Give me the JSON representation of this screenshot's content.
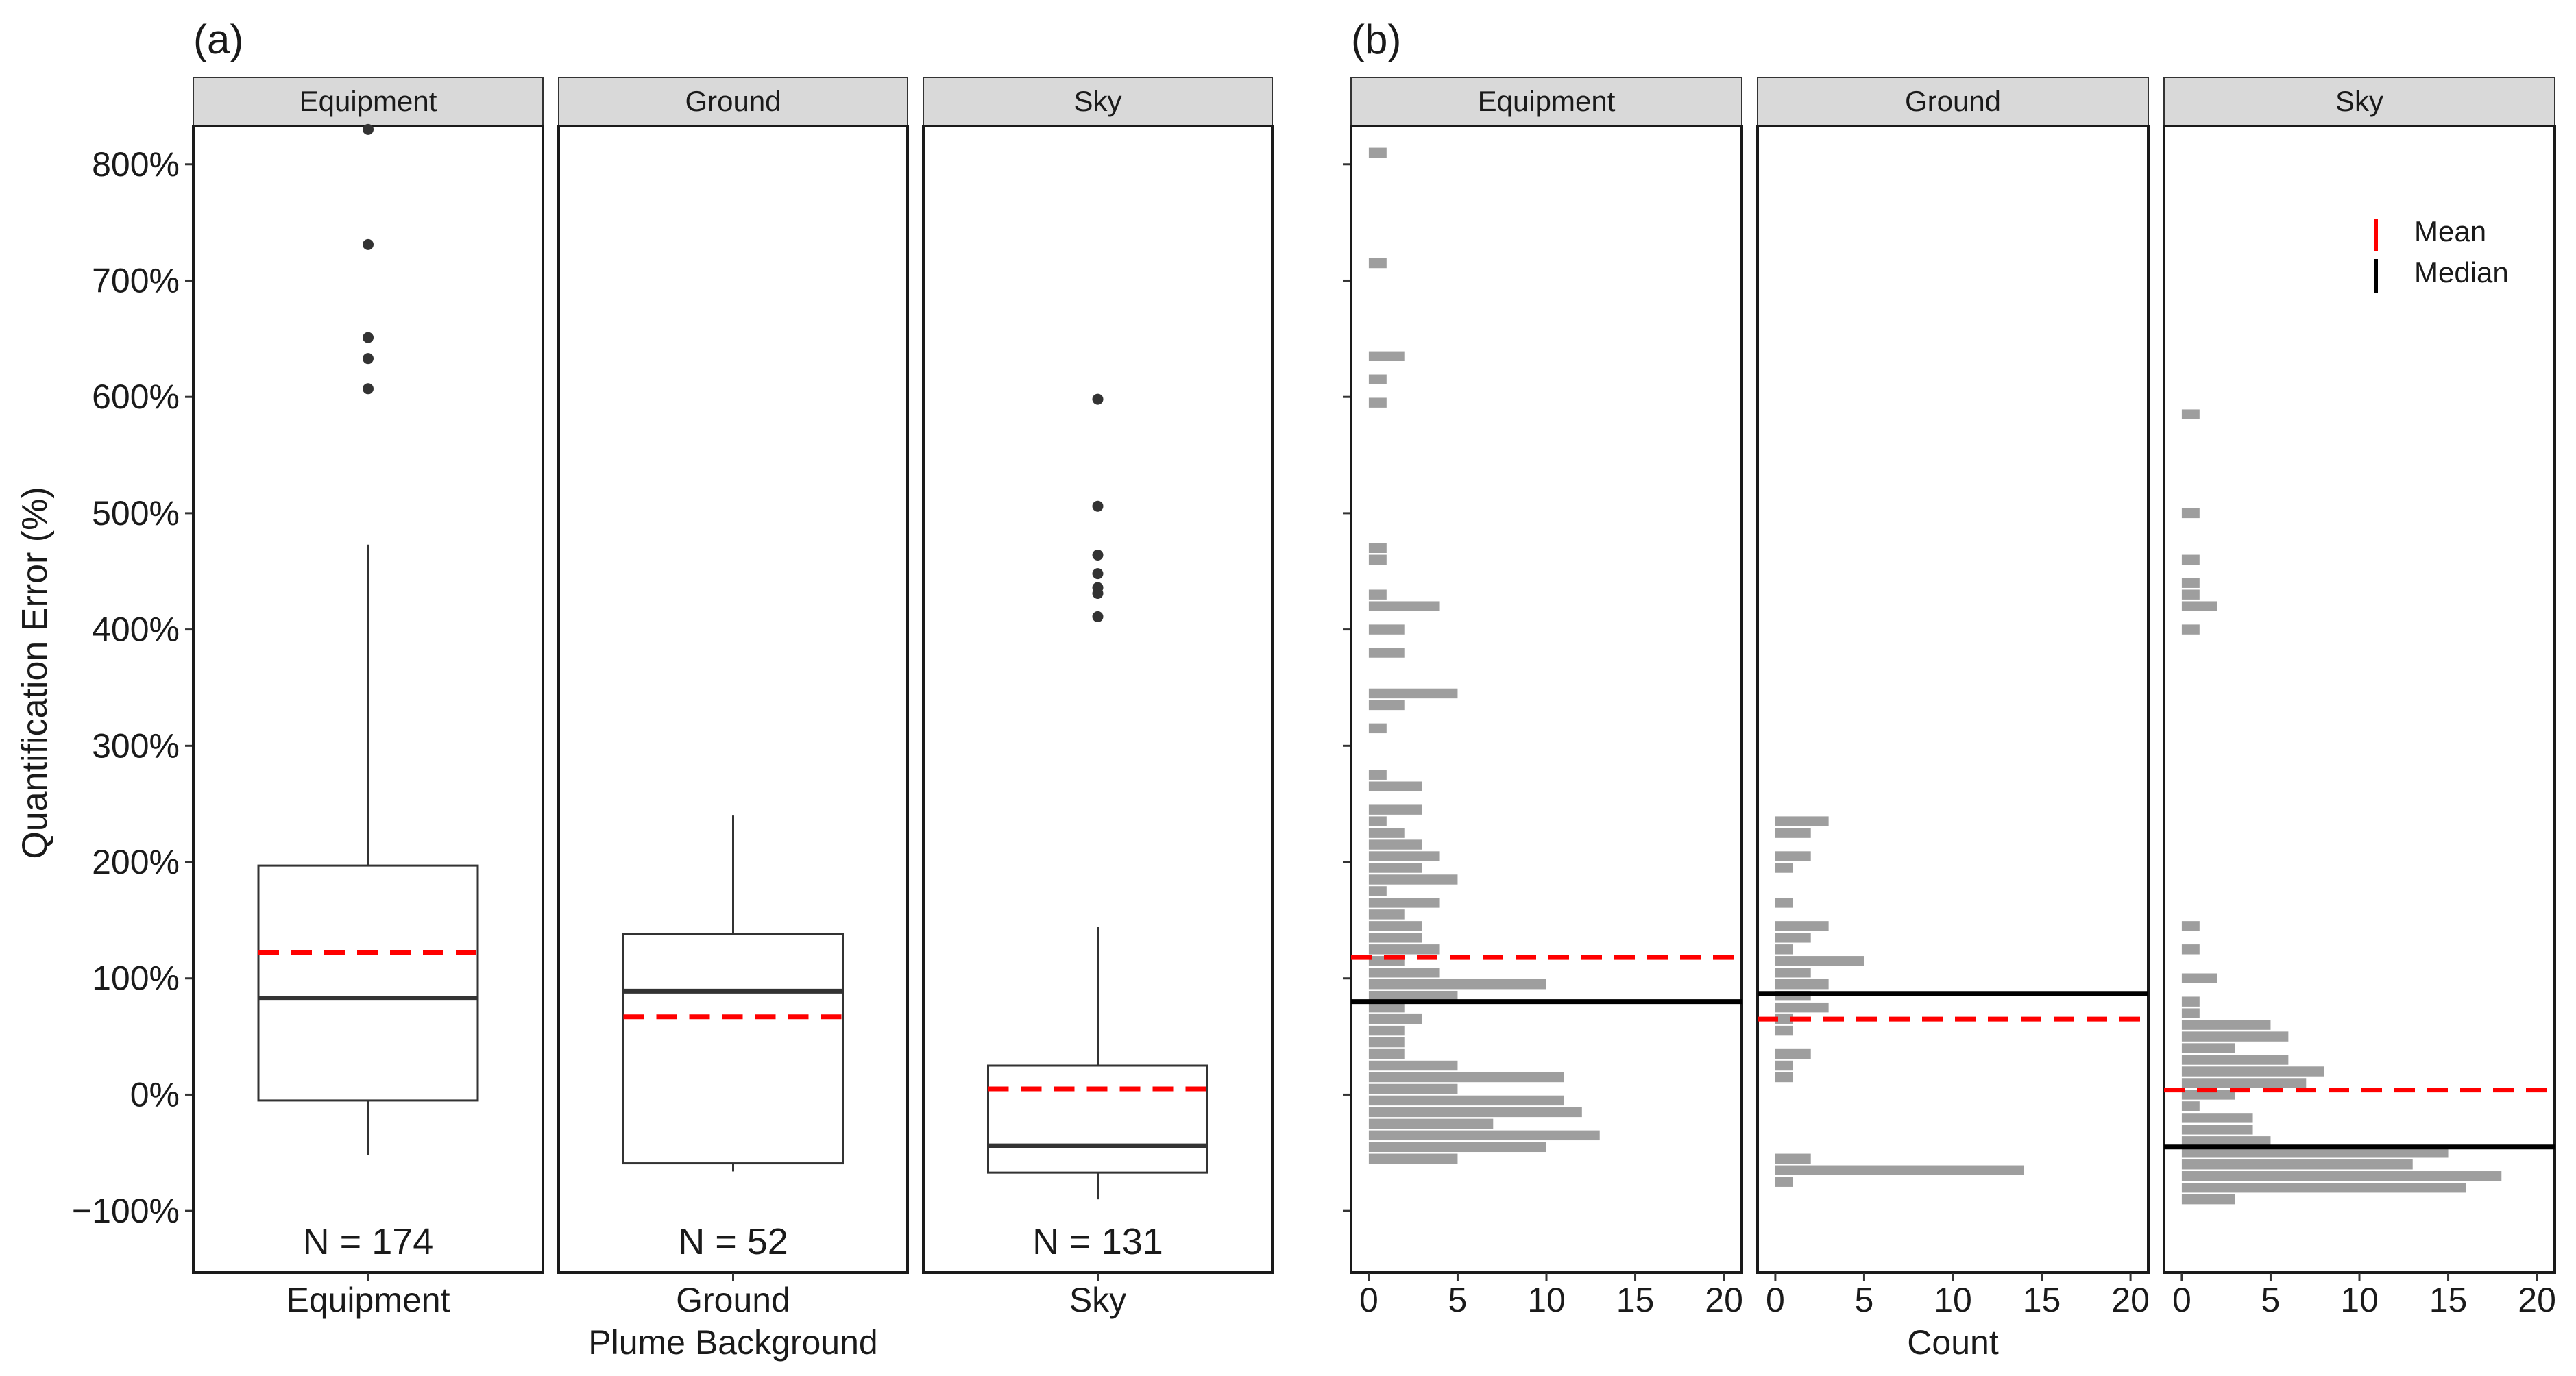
{
  "colors": {
    "mean_line": "#ff0000",
    "median_line": "#000000",
    "histogram_bar": "#9e9e9e",
    "box_median": "#333333",
    "strip_fill": "#d9d9d9",
    "outlier_point": "#333333"
  },
  "chart_data": [
    {
      "type": "box",
      "panel_label": "(a)",
      "ylabel": "Quantification Error (%)",
      "xlabel": "Plume Background",
      "ylim": [
        -150,
        880
      ],
      "ytick_values": [
        -100,
        0,
        100,
        200,
        300,
        400,
        500,
        600,
        700,
        800
      ],
      "ytick_labels": [
        "−100%",
        "0%",
        "100%",
        "200%",
        "300%",
        "400%",
        "500%",
        "600%",
        "700%",
        "800%"
      ],
      "facets": [
        {
          "strip": "Equipment",
          "category": "Equipment",
          "n_label": "N = 174",
          "lower_whisker": -52,
          "q1": -5,
          "median": 83,
          "mean": 122,
          "q3": 197,
          "upper_whisker": 473,
          "outliers": [
            607,
            633,
            651,
            731,
            830
          ]
        },
        {
          "strip": "Ground",
          "category": "Ground",
          "n_label": "N = 52",
          "lower_whisker": -66,
          "q1": -59,
          "median": 89,
          "mean": 67,
          "q3": 138,
          "upper_whisker": 240,
          "outliers": []
        },
        {
          "strip": "Sky",
          "category": "Sky",
          "n_label": "N = 131",
          "lower_whisker": -90,
          "q1": -67,
          "median": -44,
          "mean": 5,
          "q3": 25,
          "upper_whisker": 144,
          "outliers": [
            411,
            431,
            436,
            448,
            464,
            506,
            598
          ]
        }
      ]
    },
    {
      "type": "histogram",
      "orientation": "horizontal",
      "panel_label": "(b)",
      "xlabel": "Count",
      "xlim": [
        -1,
        21
      ],
      "xtick_values": [
        0,
        5,
        10,
        15,
        20
      ],
      "xtick_labels": [
        "0",
        "5",
        "10",
        "15",
        "20"
      ],
      "ylim": [
        -150,
        880
      ],
      "bin_width": 10,
      "legend": {
        "position": "top-right",
        "entries": [
          "Mean",
          "Median"
        ]
      },
      "facets": [
        {
          "strip": "Equipment",
          "mean": 118,
          "median": 80,
          "bins": [
            {
              "y": 810,
              "count": 1
            },
            {
              "y": 715,
              "count": 1
            },
            {
              "y": 635,
              "count": 2
            },
            {
              "y": 615,
              "count": 1
            },
            {
              "y": 595,
              "count": 1
            },
            {
              "y": 470,
              "count": 1
            },
            {
              "y": 460,
              "count": 1
            },
            {
              "y": 430,
              "count": 1
            },
            {
              "y": 420,
              "count": 4
            },
            {
              "y": 400,
              "count": 2
            },
            {
              "y": 380,
              "count": 2
            },
            {
              "y": 345,
              "count": 5
            },
            {
              "y": 335,
              "count": 2
            },
            {
              "y": 315,
              "count": 1
            },
            {
              "y": 275,
              "count": 1
            },
            {
              "y": 265,
              "count": 3
            },
            {
              "y": 245,
              "count": 3
            },
            {
              "y": 235,
              "count": 1
            },
            {
              "y": 225,
              "count": 2
            },
            {
              "y": 215,
              "count": 3
            },
            {
              "y": 205,
              "count": 4
            },
            {
              "y": 195,
              "count": 3
            },
            {
              "y": 185,
              "count": 5
            },
            {
              "y": 175,
              "count": 1
            },
            {
              "y": 165,
              "count": 4
            },
            {
              "y": 155,
              "count": 2
            },
            {
              "y": 145,
              "count": 3
            },
            {
              "y": 135,
              "count": 3
            },
            {
              "y": 125,
              "count": 4
            },
            {
              "y": 115,
              "count": 2
            },
            {
              "y": 105,
              "count": 4
            },
            {
              "y": 95,
              "count": 10
            },
            {
              "y": 85,
              "count": 5
            },
            {
              "y": 75,
              "count": 2
            },
            {
              "y": 65,
              "count": 3
            },
            {
              "y": 55,
              "count": 2
            },
            {
              "y": 45,
              "count": 2
            },
            {
              "y": 35,
              "count": 2
            },
            {
              "y": 25,
              "count": 5
            },
            {
              "y": 15,
              "count": 11
            },
            {
              "y": 5,
              "count": 5
            },
            {
              "y": -5,
              "count": 11
            },
            {
              "y": -15,
              "count": 12
            },
            {
              "y": -25,
              "count": 7
            },
            {
              "y": -35,
              "count": 13
            },
            {
              "y": -45,
              "count": 10
            },
            {
              "y": -55,
              "count": 5
            }
          ]
        },
        {
          "strip": "Ground",
          "mean": 65,
          "median": 87,
          "bins": [
            {
              "y": 235,
              "count": 3
            },
            {
              "y": 225,
              "count": 2
            },
            {
              "y": 205,
              "count": 2
            },
            {
              "y": 195,
              "count": 1
            },
            {
              "y": 165,
              "count": 1
            },
            {
              "y": 145,
              "count": 3
            },
            {
              "y": 135,
              "count": 2
            },
            {
              "y": 125,
              "count": 1
            },
            {
              "y": 115,
              "count": 5
            },
            {
              "y": 105,
              "count": 2
            },
            {
              "y": 95,
              "count": 3
            },
            {
              "y": 85,
              "count": 2
            },
            {
              "y": 75,
              "count": 3
            },
            {
              "y": 65,
              "count": 1
            },
            {
              "y": 55,
              "count": 1
            },
            {
              "y": 35,
              "count": 2
            },
            {
              "y": 25,
              "count": 1
            },
            {
              "y": 15,
              "count": 1
            },
            {
              "y": -55,
              "count": 2
            },
            {
              "y": -65,
              "count": 14
            },
            {
              "y": -75,
              "count": 1
            }
          ]
        },
        {
          "strip": "Sky",
          "mean": 4,
          "median": -45,
          "bins": [
            {
              "y": 585,
              "count": 1
            },
            {
              "y": 500,
              "count": 1
            },
            {
              "y": 460,
              "count": 1
            },
            {
              "y": 440,
              "count": 1
            },
            {
              "y": 430,
              "count": 1
            },
            {
              "y": 420,
              "count": 2
            },
            {
              "y": 400,
              "count": 1
            },
            {
              "y": 145,
              "count": 1
            },
            {
              "y": 125,
              "count": 1
            },
            {
              "y": 100,
              "count": 2
            },
            {
              "y": 80,
              "count": 1
            },
            {
              "y": 70,
              "count": 1
            },
            {
              "y": 60,
              "count": 5
            },
            {
              "y": 50,
              "count": 6
            },
            {
              "y": 40,
              "count": 3
            },
            {
              "y": 30,
              "count": 6
            },
            {
              "y": 20,
              "count": 8
            },
            {
              "y": 10,
              "count": 7
            },
            {
              "y": 0,
              "count": 3
            },
            {
              "y": -10,
              "count": 1
            },
            {
              "y": -20,
              "count": 4
            },
            {
              "y": -30,
              "count": 4
            },
            {
              "y": -40,
              "count": 5
            },
            {
              "y": -50,
              "count": 15
            },
            {
              "y": -60,
              "count": 13
            },
            {
              "y": -70,
              "count": 18
            },
            {
              "y": -80,
              "count": 16
            },
            {
              "y": -90,
              "count": 3
            }
          ]
        }
      ]
    }
  ]
}
